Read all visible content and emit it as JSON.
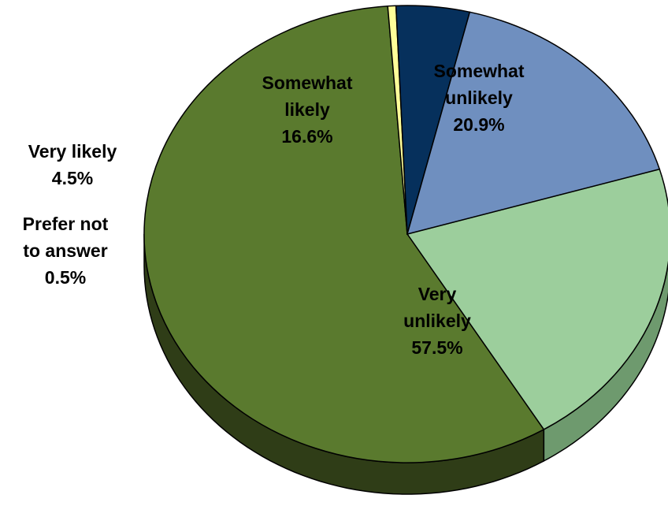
{
  "chart_data": {
    "type": "pie",
    "title": "",
    "style": "3d",
    "slices": [
      {
        "label_lines": [
          "Somewhat",
          "unlikely"
        ],
        "value": 20.9,
        "value_label": "20.9%",
        "color": "#9cce9c",
        "side_color": "#6e9a6e"
      },
      {
        "label_lines": [
          "Very",
          "unlikely"
        ],
        "value": 57.5,
        "value_label": "57.5%",
        "color": "#5a7a2e",
        "side_color": "#2f3d17"
      },
      {
        "label_lines": [
          "Prefer not",
          "to answer"
        ],
        "value": 0.5,
        "value_label": "0.5%",
        "color": "#ffff99",
        "side_color": "#b8b85a"
      },
      {
        "label_lines": [
          "Very likely"
        ],
        "value": 4.5,
        "value_label": "4.5%",
        "color": "#06305c",
        "side_color": "#021a33"
      },
      {
        "label_lines": [
          "Somewhat",
          "likely"
        ],
        "value": 16.6,
        "value_label": "16.6%",
        "color": "#6f8fbf",
        "side_color": "#46618a"
      }
    ]
  }
}
